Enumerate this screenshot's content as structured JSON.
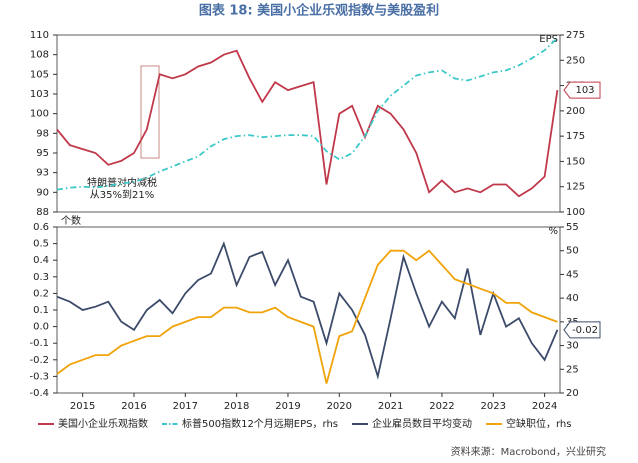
{
  "title": "图表 18: 美国小企业乐观指数与美股盈利",
  "source": "资料来源：Macrobond，兴业研究",
  "annotation": [
    "特朗普对内减税",
    "从35%到21%"
  ],
  "chart_data": [
    {
      "type": "line",
      "y2label": "EPS",
      "x": [
        2015,
        2015.25,
        2015.5,
        2015.75,
        2016,
        2016.25,
        2016.5,
        2016.75,
        2017,
        2017.25,
        2017.5,
        2017.75,
        2018,
        2018.25,
        2018.5,
        2018.75,
        2019,
        2019.25,
        2019.5,
        2019.75,
        2020,
        2020.25,
        2020.5,
        2020.75,
        2021,
        2021.25,
        2021.5,
        2021.75,
        2022,
        2022.25,
        2022.5,
        2022.75,
        2023,
        2023.25,
        2023.5,
        2023.75,
        2024,
        2024.25,
        2024.5,
        2024.75
      ],
      "xlim": [
        2015,
        2024.8
      ],
      "ylim": [
        87.5,
        110
      ],
      "yticks": [
        {
          "value": 87.5,
          "label": "88"
        },
        90,
        {
          "value": 92.5,
          "label": "93"
        },
        95,
        {
          "value": 97.5,
          "label": "98"
        },
        100,
        {
          "value": 102.5,
          "label": "103"
        },
        105,
        {
          "value": 107.5,
          "label": "108"
        },
        110
      ],
      "y2lim": [
        100,
        275
      ],
      "y2ticks": [
        100,
        125,
        150,
        175,
        200,
        225,
        250,
        275
      ],
      "series": [
        {
          "name": "美国小企业乐观指数",
          "color": "#c0394b",
          "dash": false,
          "last_label": "103",
          "values": [
            98,
            96,
            95.5,
            95,
            93.5,
            94,
            95,
            98,
            105,
            104.5,
            105,
            106,
            106.5,
            107.5,
            108,
            104.5,
            101.5,
            104,
            103,
            103.5,
            104,
            91,
            100,
            101,
            97,
            101,
            100,
            98,
            95,
            90,
            91.5,
            90,
            90.5,
            90,
            91,
            91,
            89.5,
            90.5,
            92,
            103
          ]
        },
        {
          "name": "标普500指数12个月远期EPS，rhs",
          "color": "#3cc8c8",
          "dash": true,
          "axis": "y2",
          "values": [
            122,
            124,
            125,
            124,
            126,
            128,
            130,
            134,
            140,
            145,
            150,
            155,
            165,
            172,
            175,
            176,
            174,
            175,
            176,
            176,
            175,
            160,
            152,
            158,
            175,
            200,
            215,
            225,
            235,
            238,
            240,
            232,
            230,
            234,
            238,
            240,
            245,
            252,
            260,
            272
          ]
        }
      ]
    },
    {
      "type": "line",
      "ylabel": "个数",
      "y2label": "%",
      "x": [
        2015,
        2015.25,
        2015.5,
        2015.75,
        2016,
        2016.25,
        2016.5,
        2016.75,
        2017,
        2017.25,
        2017.5,
        2017.75,
        2018,
        2018.25,
        2018.5,
        2018.75,
        2019,
        2019.25,
        2019.5,
        2019.75,
        2020,
        2020.25,
        2020.5,
        2020.75,
        2021,
        2021.25,
        2021.5,
        2021.75,
        2022,
        2022.25,
        2022.5,
        2022.75,
        2023,
        2023.25,
        2023.5,
        2023.75,
        2024,
        2024.25,
        2024.5,
        2024.75
      ],
      "xlim": [
        2015,
        2024.8
      ],
      "xticks": [
        {
          "value": 2015.5,
          "label": "2015"
        },
        {
          "value": 2016.5,
          "label": "2016"
        },
        {
          "value": 2017.5,
          "label": "2017"
        },
        {
          "value": 2018.5,
          "label": "2018"
        },
        {
          "value": 2019.5,
          "label": "2019"
        },
        {
          "value": 2020.5,
          "label": "2020"
        },
        {
          "value": 2021.5,
          "label": "2021"
        },
        {
          "value": 2022.5,
          "label": "2022"
        },
        {
          "value": 2023.5,
          "label": "2023"
        },
        {
          "value": 2024.5,
          "label": "2024"
        }
      ],
      "ylim": [
        -0.4,
        0.6
      ],
      "yticks": [
        -0.4,
        -0.3,
        -0.2,
        -0.1,
        {
          "value": 0,
          "label": "0.0"
        },
        0.1,
        0.2,
        0.3,
        0.4,
        0.5,
        0.6
      ],
      "y2lim": [
        20,
        55
      ],
      "y2ticks": [
        20,
        25,
        30,
        35,
        40,
        45,
        50,
        55
      ],
      "series": [
        {
          "name": "企业雇员数目平均变动",
          "color": "#3d4b6b",
          "dash": false,
          "last_label": "-0.02",
          "values": [
            0.18,
            0.15,
            0.1,
            0.12,
            0.15,
            0.03,
            -0.02,
            0.1,
            0.16,
            0.08,
            0.2,
            0.28,
            0.32,
            0.5,
            0.25,
            0.42,
            0.45,
            0.25,
            0.4,
            0.18,
            0.15,
            -0.1,
            0.2,
            0.1,
            -0.05,
            -0.3,
            0.05,
            0.42,
            0.2,
            0,
            0.15,
            0.05,
            0.35,
            -0.05,
            0.2,
            0,
            0.05,
            -0.1,
            -0.2,
            -0.02
          ]
        },
        {
          "name": "空缺职位，rhs",
          "color": "#f0a30a",
          "dash": false,
          "axis": "y2",
          "values": [
            24,
            26,
            27,
            28,
            28,
            30,
            31,
            32,
            32,
            34,
            35,
            36,
            36,
            38,
            38,
            37,
            37,
            38,
            36,
            35,
            34,
            22,
            32,
            33,
            40,
            47,
            50,
            50,
            48,
            50,
            47,
            44,
            43,
            42,
            41,
            39,
            39,
            37,
            36,
            35
          ]
        }
      ]
    }
  ]
}
